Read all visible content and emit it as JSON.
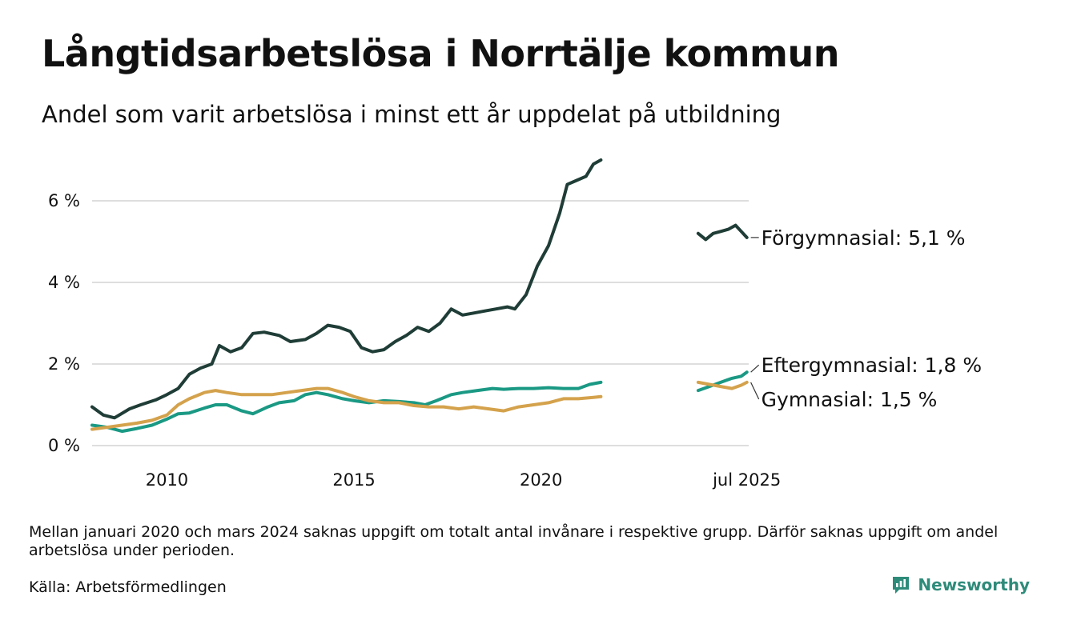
{
  "title": "Långtidsarbetslösa i Norrtälje kommun",
  "subtitle": "Andel som varit arbetslösa i minst ett år uppdelat på utbildning",
  "footnote": "Mellan januari 2020 och mars 2024 saknas uppgift om totalt antal invånare i respektive grupp. Därför saknas uppgift om andel arbetslösa under perioden.",
  "source": "Källa: Arbetsförmedlingen",
  "brand": "Newsworthy",
  "chart_data": {
    "type": "line",
    "title": "Långtidsarbetslösa i Norrtälje kommun",
    "subtitle": "Andel som varit arbetslösa i minst ett år uppdelat på utbildning",
    "xlabel": "",
    "ylabel": "",
    "ylim": [
      0,
      7
    ],
    "y_ticks": [
      {
        "value": 0,
        "label": "0 %"
      },
      {
        "value": 2,
        "label": "2 %"
      },
      {
        "value": 4,
        "label": "4 %"
      },
      {
        "value": 6,
        "label": "6 %"
      }
    ],
    "x_ticks": [
      {
        "value": 2010,
        "label": "2010"
      },
      {
        "value": 2015,
        "label": "2015"
      },
      {
        "value": 2020,
        "label": "2020"
      },
      {
        "value": 2025.5,
        "label": "jul 2025"
      }
    ],
    "xlim": [
      2008.0,
      2025.55
    ],
    "grid": "horizontal",
    "legend": "direct labels at line ends (right)",
    "series": [
      {
        "name": "Förgymnasial",
        "end_label": "Förgymnasial: 5,1 %",
        "color": "#1f3d36",
        "segments": [
          [
            [
              2008.0,
              0.95
            ],
            [
              2008.3,
              0.75
            ],
            [
              2008.6,
              0.68
            ],
            [
              2009.0,
              0.9
            ],
            [
              2009.3,
              1.0
            ],
            [
              2009.7,
              1.12
            ],
            [
              2010.0,
              1.25
            ],
            [
              2010.3,
              1.4
            ],
            [
              2010.6,
              1.75
            ],
            [
              2010.9,
              1.9
            ],
            [
              2011.2,
              2.0
            ],
            [
              2011.4,
              2.45
            ],
            [
              2011.7,
              2.3
            ],
            [
              2012.0,
              2.4
            ],
            [
              2012.3,
              2.75
            ],
            [
              2012.6,
              2.78
            ],
            [
              2013.0,
              2.7
            ],
            [
              2013.3,
              2.55
            ],
            [
              2013.7,
              2.6
            ],
            [
              2014.0,
              2.75
            ],
            [
              2014.3,
              2.95
            ],
            [
              2014.6,
              2.9
            ],
            [
              2014.9,
              2.8
            ],
            [
              2015.2,
              2.4
            ],
            [
              2015.5,
              2.3
            ],
            [
              2015.8,
              2.35
            ],
            [
              2016.1,
              2.55
            ],
            [
              2016.4,
              2.7
            ],
            [
              2016.7,
              2.9
            ],
            [
              2017.0,
              2.8
            ],
            [
              2017.3,
              3.0
            ],
            [
              2017.6,
              3.35
            ],
            [
              2017.9,
              3.2
            ],
            [
              2018.2,
              3.25
            ],
            [
              2018.5,
              3.3
            ],
            [
              2018.8,
              3.35
            ],
            [
              2019.1,
              3.4
            ],
            [
              2019.3,
              3.35
            ],
            [
              2019.6,
              3.7
            ],
            [
              2019.9,
              4.4
            ],
            [
              2020.2,
              4.9
            ],
            [
              2020.5,
              5.7
            ],
            [
              2020.7,
              6.4
            ],
            [
              2020.95,
              6.5
            ],
            [
              2021.2,
              6.6
            ],
            [
              2021.4,
              6.9
            ],
            [
              2021.6,
              7.0
            ]
          ],
          [
            [
              2024.2,
              5.2
            ],
            [
              2024.4,
              5.05
            ],
            [
              2024.6,
              5.2
            ],
            [
              2024.8,
              5.25
            ],
            [
              2025.0,
              5.3
            ],
            [
              2025.2,
              5.4
            ],
            [
              2025.35,
              5.25
            ],
            [
              2025.5,
              5.1
            ]
          ]
        ]
      },
      {
        "name": "Eftergymnasial",
        "end_label": "Eftergymnasial: 1,8 %",
        "color": "#1a9984",
        "segments": [
          [
            [
              2008.0,
              0.5
            ],
            [
              2008.4,
              0.45
            ],
            [
              2008.8,
              0.35
            ],
            [
              2009.2,
              0.42
            ],
            [
              2009.6,
              0.5
            ],
            [
              2010.0,
              0.65
            ],
            [
              2010.3,
              0.78
            ],
            [
              2010.6,
              0.8
            ],
            [
              2011.0,
              0.92
            ],
            [
              2011.3,
              1.0
            ],
            [
              2011.6,
              1.0
            ],
            [
              2012.0,
              0.85
            ],
            [
              2012.3,
              0.78
            ],
            [
              2012.7,
              0.95
            ],
            [
              2013.0,
              1.05
            ],
            [
              2013.4,
              1.1
            ],
            [
              2013.7,
              1.25
            ],
            [
              2014.0,
              1.3
            ],
            [
              2014.3,
              1.25
            ],
            [
              2014.7,
              1.15
            ],
            [
              2015.0,
              1.1
            ],
            [
              2015.4,
              1.05
            ],
            [
              2015.8,
              1.1
            ],
            [
              2016.2,
              1.08
            ],
            [
              2016.6,
              1.05
            ],
            [
              2016.9,
              1.0
            ],
            [
              2017.2,
              1.1
            ],
            [
              2017.6,
              1.25
            ],
            [
              2017.9,
              1.3
            ],
            [
              2018.3,
              1.35
            ],
            [
              2018.7,
              1.4
            ],
            [
              2019.0,
              1.38
            ],
            [
              2019.4,
              1.4
            ],
            [
              2019.8,
              1.4
            ],
            [
              2020.2,
              1.42
            ],
            [
              2020.6,
              1.4
            ],
            [
              2021.0,
              1.4
            ],
            [
              2021.3,
              1.5
            ],
            [
              2021.6,
              1.55
            ]
          ],
          [
            [
              2024.2,
              1.35
            ],
            [
              2024.5,
              1.45
            ],
            [
              2024.8,
              1.55
            ],
            [
              2025.1,
              1.65
            ],
            [
              2025.35,
              1.7
            ],
            [
              2025.5,
              1.8
            ]
          ]
        ]
      },
      {
        "name": "Gymnasial",
        "end_label": "Gymnasial: 1,5 %",
        "color": "#d4a24c",
        "segments": [
          [
            [
              2008.0,
              0.4
            ],
            [
              2008.4,
              0.45
            ],
            [
              2008.8,
              0.5
            ],
            [
              2009.2,
              0.55
            ],
            [
              2009.6,
              0.62
            ],
            [
              2010.0,
              0.75
            ],
            [
              2010.3,
              1.0
            ],
            [
              2010.6,
              1.15
            ],
            [
              2011.0,
              1.3
            ],
            [
              2011.3,
              1.35
            ],
            [
              2011.6,
              1.3
            ],
            [
              2012.0,
              1.25
            ],
            [
              2012.4,
              1.25
            ],
            [
              2012.8,
              1.25
            ],
            [
              2013.2,
              1.3
            ],
            [
              2013.6,
              1.35
            ],
            [
              2014.0,
              1.4
            ],
            [
              2014.3,
              1.4
            ],
            [
              2014.7,
              1.3
            ],
            [
              2015.0,
              1.2
            ],
            [
              2015.4,
              1.1
            ],
            [
              2015.8,
              1.05
            ],
            [
              2016.2,
              1.05
            ],
            [
              2016.6,
              0.98
            ],
            [
              2017.0,
              0.95
            ],
            [
              2017.4,
              0.95
            ],
            [
              2017.8,
              0.9
            ],
            [
              2018.2,
              0.95
            ],
            [
              2018.6,
              0.9
            ],
            [
              2019.0,
              0.85
            ],
            [
              2019.4,
              0.95
            ],
            [
              2019.8,
              1.0
            ],
            [
              2020.2,
              1.05
            ],
            [
              2020.6,
              1.15
            ],
            [
              2021.0,
              1.15
            ],
            [
              2021.4,
              1.18
            ],
            [
              2021.6,
              1.2
            ]
          ],
          [
            [
              2024.2,
              1.55
            ],
            [
              2024.5,
              1.5
            ],
            [
              2024.8,
              1.45
            ],
            [
              2025.1,
              1.4
            ],
            [
              2025.35,
              1.48
            ],
            [
              2025.5,
              1.55
            ]
          ]
        ]
      }
    ]
  }
}
